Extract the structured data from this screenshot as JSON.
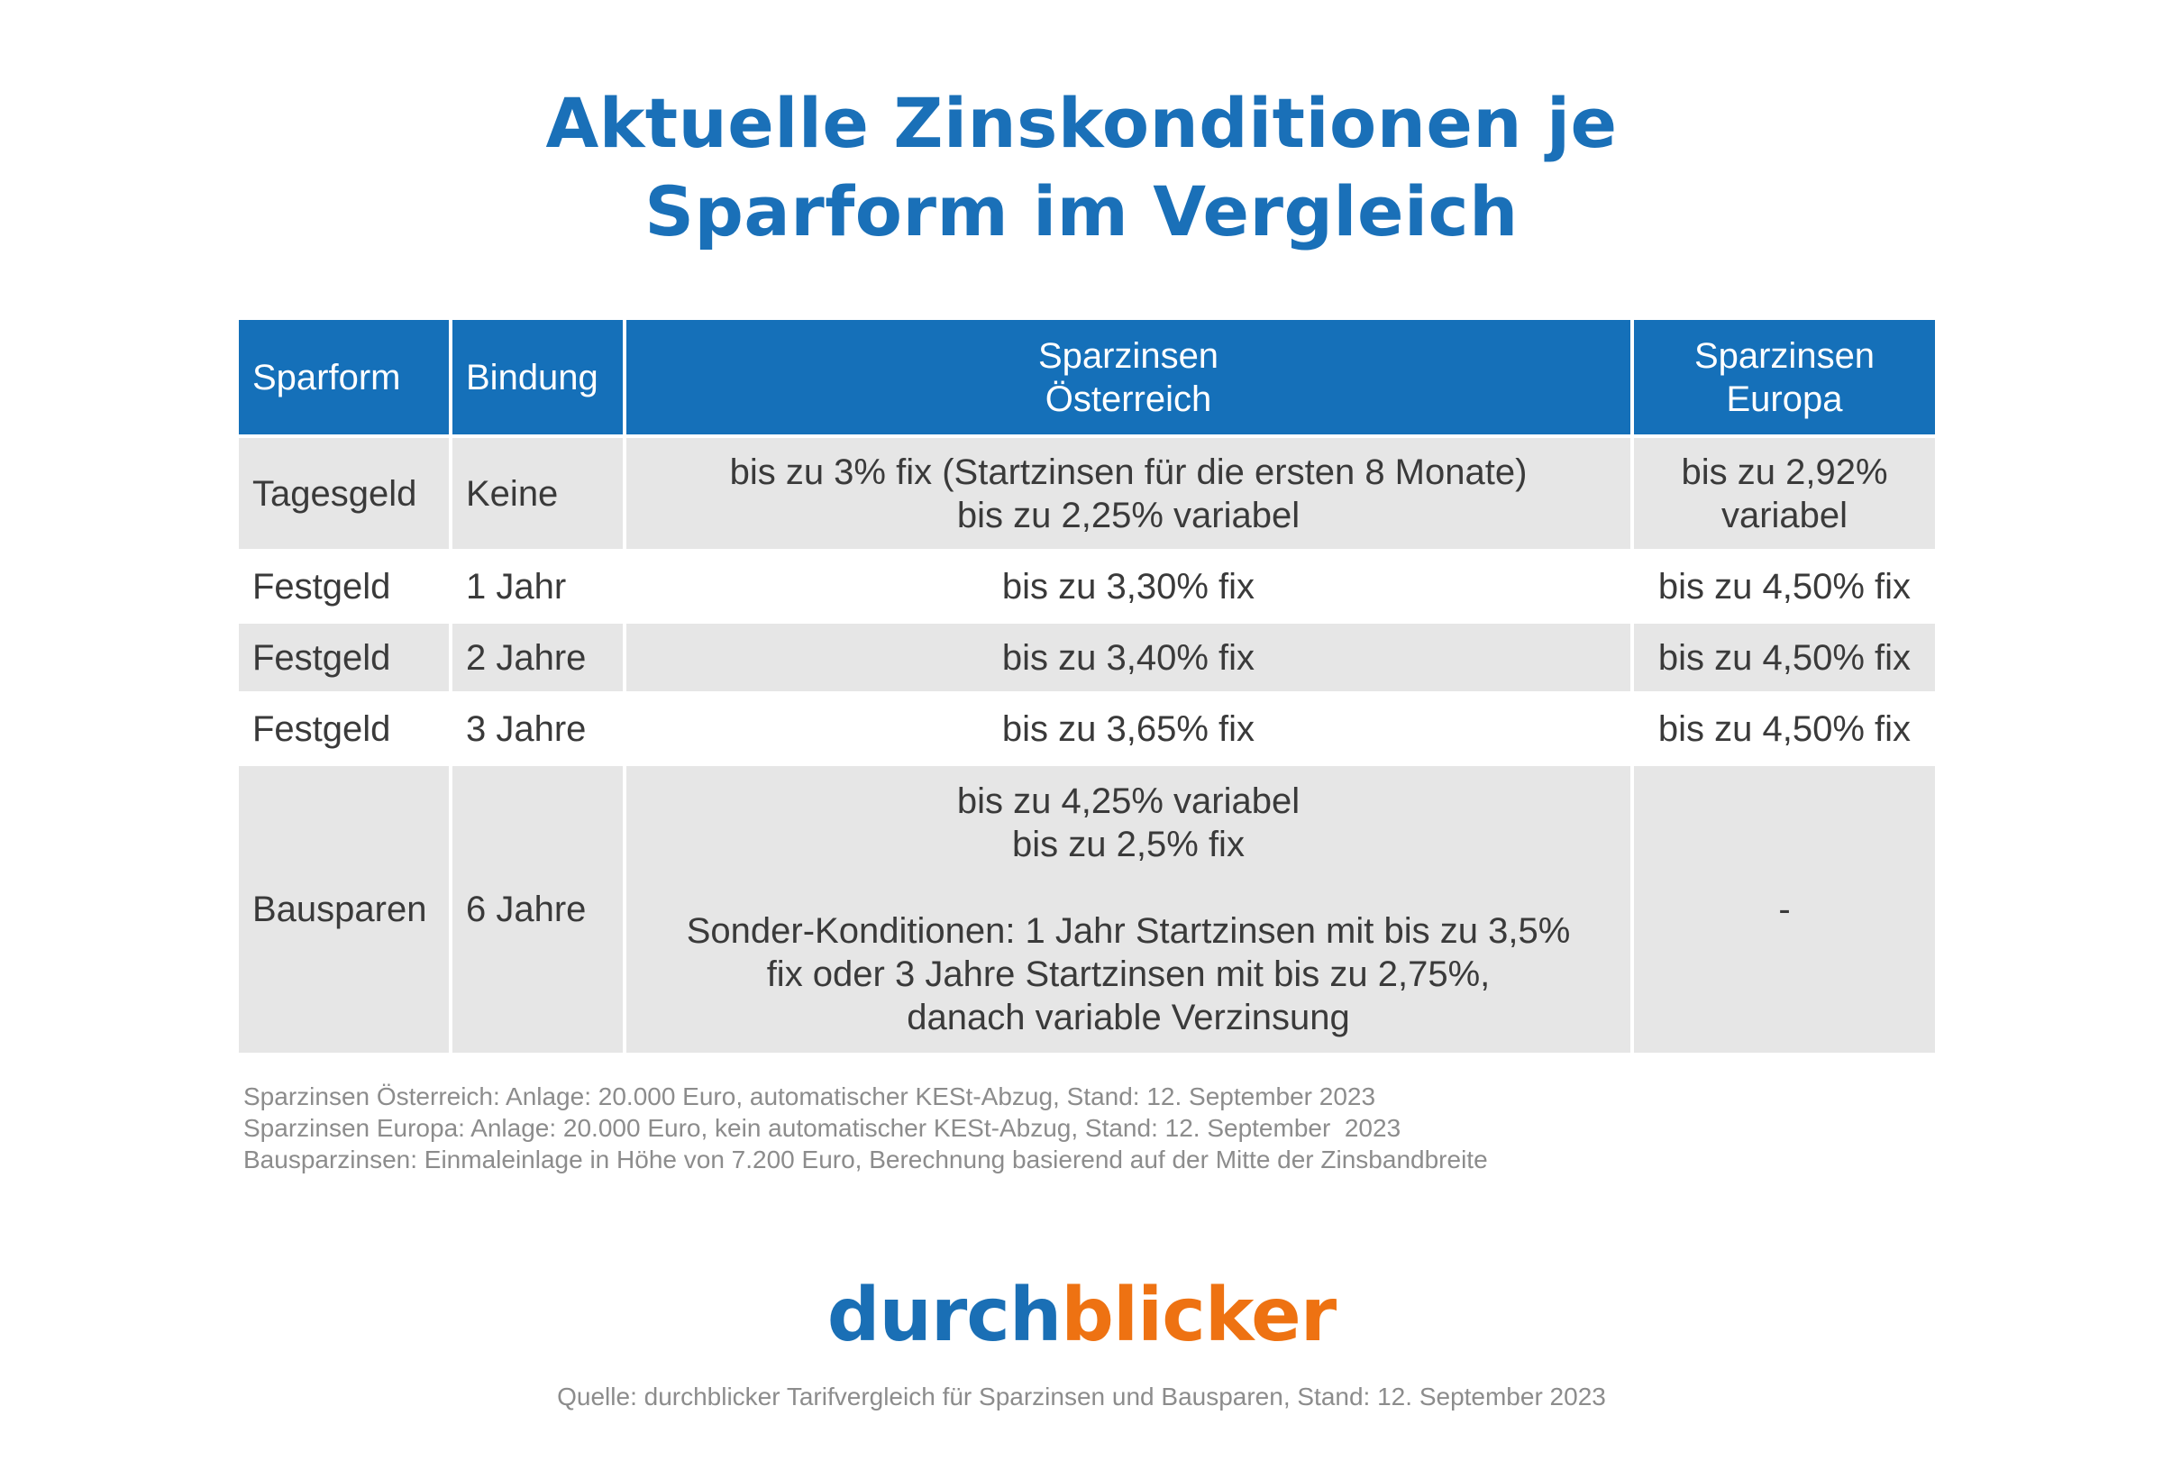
{
  "title": {
    "line1": "Aktuelle Zinskonditionen je",
    "line2": "Sparform im Vergleich"
  },
  "chart_data": {
    "type": "table",
    "columns": [
      {
        "line1": "Sparform",
        "line2": ""
      },
      {
        "line1": "Bindung",
        "line2": ""
      },
      {
        "line1": "Sparzinsen",
        "line2": "Österreich"
      },
      {
        "line1": "Sparzinsen",
        "line2": "Europa"
      }
    ],
    "rows": [
      {
        "sparform": "Tagesgeld",
        "bindung": "Keine",
        "oesterreich": [
          "bis zu 3% fix (Startzinsen für die ersten 8 Monate)",
          "bis zu 2,25% variabel"
        ],
        "europa": [
          "bis zu 2,92%",
          "variabel"
        ]
      },
      {
        "sparform": "Festgeld",
        "bindung": "1 Jahr",
        "oesterreich": [
          "bis zu 3,30% fix"
        ],
        "europa": [
          "bis zu 4,50% fix"
        ]
      },
      {
        "sparform": "Festgeld",
        "bindung": "2 Jahre",
        "oesterreich": [
          "bis zu 3,40% fix"
        ],
        "europa": [
          "bis zu 4,50% fix"
        ]
      },
      {
        "sparform": "Festgeld",
        "bindung": "3 Jahre",
        "oesterreich": [
          "bis zu 3,65% fix"
        ],
        "europa": [
          "bis zu 4,50% fix"
        ]
      },
      {
        "sparform": "Bausparen",
        "bindung": "6 Jahre",
        "oesterreich": [
          "bis zu 4,25% variabel",
          "bis zu 2,5% fix"
        ],
        "oesterreich_extra": [
          "Sonder-Konditionen: 1 Jahr Startzinsen mit bis zu 3,5%",
          "fix oder 3 Jahre Startzinsen mit bis zu 2,75%,",
          "danach variable Verzinsung"
        ],
        "europa": [
          "-"
        ]
      }
    ]
  },
  "notes": [
    "Sparzinsen Österreich: Anlage: 20.000 Euro, automatischer KESt-Abzug, Stand: 12. September 2023",
    "Sparzinsen Europa: Anlage: 20.000 Euro, kein automatischer KESt-Abzug, Stand: 12. September  2023",
    "Bausparzinsen: Einmaleinlage in Höhe von 7.200 Euro, Berechnung basierend auf der Mitte der Zinsbandbreite"
  ],
  "logo": {
    "part1": "durch",
    "part2": "blicker"
  },
  "source": "Quelle: durchblicker Tarifvergleich für Sparzinsen und Bausparen, Stand: 12. September 2023",
  "colors": {
    "header_blue": "#1570b9",
    "title_blue": "#1a70b8",
    "logo_orange": "#ee7212",
    "row_grey": "#e6e6e6"
  }
}
